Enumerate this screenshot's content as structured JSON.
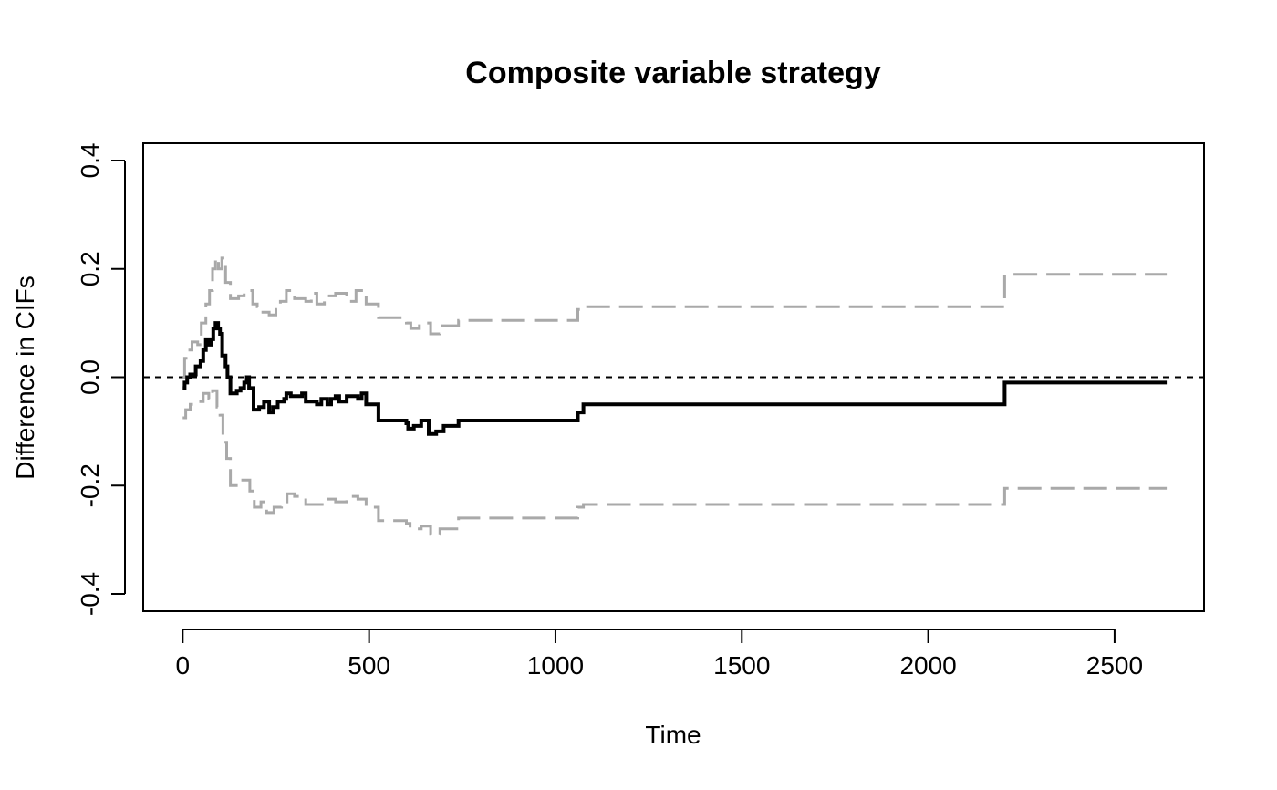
{
  "chart_data": {
    "type": "line",
    "title": "Composite variable strategy",
    "xlabel": "Time",
    "ylabel": "Difference in CIFs",
    "xlim": [
      -106,
      2740
    ],
    "ylim": [
      -0.432,
      0.432
    ],
    "xticks": [
      0,
      500,
      1000,
      1500,
      2000,
      2500
    ],
    "yticks": [
      -0.4,
      -0.2,
      0.0,
      0.2,
      0.4
    ],
    "xtick_labels": [
      "0",
      "500",
      "1000",
      "1500",
      "2000",
      "2500"
    ],
    "ytick_labels": [
      "-0.4",
      "-0.2",
      "0.0",
      "0.2",
      "0.4"
    ],
    "grid": false,
    "legend": "none",
    "reference_line": {
      "y": 0,
      "style": "dashed",
      "color": "#000000"
    },
    "series": [
      {
        "role": "estimate",
        "step": true,
        "color": "#000000",
        "style": "solid",
        "points": [
          [
            0,
            -0.02
          ],
          [
            5,
            -0.01
          ],
          [
            12,
            0.0
          ],
          [
            20,
            0.005
          ],
          [
            35,
            0.02
          ],
          [
            48,
            0.03
          ],
          [
            55,
            0.05
          ],
          [
            62,
            0.07
          ],
          [
            68,
            0.06
          ],
          [
            75,
            0.07
          ],
          [
            82,
            0.09
          ],
          [
            88,
            0.1
          ],
          [
            95,
            0.09
          ],
          [
            100,
            0.08
          ],
          [
            106,
            0.04
          ],
          [
            115,
            0.02
          ],
          [
            120,
            0.0
          ],
          [
            128,
            -0.03
          ],
          [
            145,
            -0.025
          ],
          [
            155,
            -0.02
          ],
          [
            165,
            -0.01
          ],
          [
            172,
            0.0
          ],
          [
            178,
            -0.02
          ],
          [
            190,
            -0.06
          ],
          [
            205,
            -0.055
          ],
          [
            218,
            -0.045
          ],
          [
            232,
            -0.065
          ],
          [
            242,
            -0.055
          ],
          [
            255,
            -0.045
          ],
          [
            272,
            -0.04
          ],
          [
            278,
            -0.03
          ],
          [
            290,
            -0.035
          ],
          [
            320,
            -0.03
          ],
          [
            330,
            -0.045
          ],
          [
            360,
            -0.05
          ],
          [
            372,
            -0.04
          ],
          [
            388,
            -0.05
          ],
          [
            398,
            -0.04
          ],
          [
            410,
            -0.035
          ],
          [
            420,
            -0.045
          ],
          [
            440,
            -0.035
          ],
          [
            470,
            -0.04
          ],
          [
            480,
            -0.03
          ],
          [
            492,
            -0.05
          ],
          [
            525,
            -0.08
          ],
          [
            600,
            -0.085
          ],
          [
            605,
            -0.095
          ],
          [
            620,
            -0.09
          ],
          [
            640,
            -0.08
          ],
          [
            660,
            -0.105
          ],
          [
            680,
            -0.1
          ],
          [
            700,
            -0.09
          ],
          [
            740,
            -0.08
          ],
          [
            1060,
            -0.065
          ],
          [
            1075,
            -0.05
          ],
          [
            2205,
            -0.01
          ],
          [
            2640,
            -0.01
          ]
        ]
      },
      {
        "role": "upper confidence band",
        "step": true,
        "color": "#a9a9a9",
        "style": "dashed",
        "points": [
          [
            0,
            0.0
          ],
          [
            5,
            0.035
          ],
          [
            15,
            0.05
          ],
          [
            25,
            0.065
          ],
          [
            40,
            0.06
          ],
          [
            50,
            0.1
          ],
          [
            62,
            0.135
          ],
          [
            72,
            0.16
          ],
          [
            80,
            0.2
          ],
          [
            88,
            0.22
          ],
          [
            96,
            0.2
          ],
          [
            105,
            0.22
          ],
          [
            115,
            0.175
          ],
          [
            128,
            0.145
          ],
          [
            150,
            0.15
          ],
          [
            165,
            0.155
          ],
          [
            178,
            0.16
          ],
          [
            188,
            0.135
          ],
          [
            200,
            0.13
          ],
          [
            215,
            0.12
          ],
          [
            232,
            0.115
          ],
          [
            250,
            0.125
          ],
          [
            262,
            0.14
          ],
          [
            278,
            0.16
          ],
          [
            300,
            0.145
          ],
          [
            330,
            0.14
          ],
          [
            345,
            0.155
          ],
          [
            360,
            0.135
          ],
          [
            380,
            0.15
          ],
          [
            410,
            0.155
          ],
          [
            440,
            0.14
          ],
          [
            465,
            0.16
          ],
          [
            492,
            0.135
          ],
          [
            525,
            0.11
          ],
          [
            600,
            0.1
          ],
          [
            612,
            0.09
          ],
          [
            635,
            0.1
          ],
          [
            665,
            0.08
          ],
          [
            690,
            0.095
          ],
          [
            740,
            0.105
          ],
          [
            1060,
            0.125
          ],
          [
            1075,
            0.13
          ],
          [
            2205,
            0.19
          ],
          [
            2640,
            0.19
          ]
        ]
      },
      {
        "role": "lower confidence band",
        "step": true,
        "color": "#a9a9a9",
        "style": "dashed",
        "points": [
          [
            0,
            -0.075
          ],
          [
            8,
            -0.06
          ],
          [
            20,
            -0.05
          ],
          [
            40,
            -0.045
          ],
          [
            55,
            -0.03
          ],
          [
            70,
            -0.04
          ],
          [
            80,
            -0.025
          ],
          [
            92,
            -0.055
          ],
          [
            100,
            -0.07
          ],
          [
            108,
            -0.12
          ],
          [
            118,
            -0.15
          ],
          [
            128,
            -0.2
          ],
          [
            150,
            -0.19
          ],
          [
            165,
            -0.19
          ],
          [
            180,
            -0.21
          ],
          [
            192,
            -0.24
          ],
          [
            210,
            -0.23
          ],
          [
            225,
            -0.25
          ],
          [
            245,
            -0.24
          ],
          [
            265,
            -0.23
          ],
          [
            280,
            -0.215
          ],
          [
            300,
            -0.22
          ],
          [
            330,
            -0.235
          ],
          [
            360,
            -0.235
          ],
          [
            380,
            -0.225
          ],
          [
            410,
            -0.23
          ],
          [
            440,
            -0.22
          ],
          [
            470,
            -0.225
          ],
          [
            492,
            -0.24
          ],
          [
            525,
            -0.265
          ],
          [
            600,
            -0.27
          ],
          [
            610,
            -0.28
          ],
          [
            640,
            -0.275
          ],
          [
            665,
            -0.29
          ],
          [
            690,
            -0.28
          ],
          [
            740,
            -0.26
          ],
          [
            1060,
            -0.24
          ],
          [
            1075,
            -0.235
          ],
          [
            2205,
            -0.205
          ],
          [
            2640,
            -0.205
          ]
        ]
      }
    ]
  }
}
